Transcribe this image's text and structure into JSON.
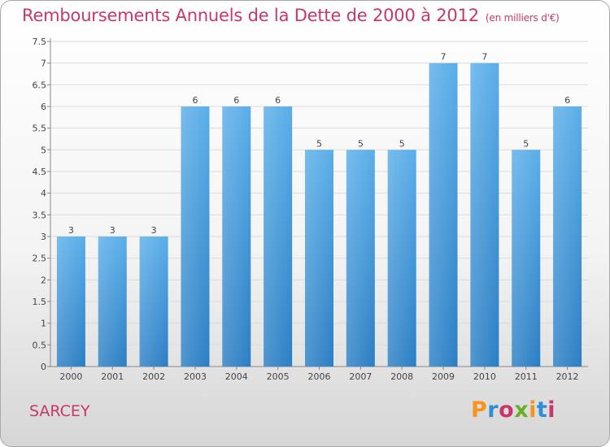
{
  "title": "Remboursements Annuels de la Dette de 2000 à 2012",
  "unit": "(en milliers d'€)",
  "place": "SARCEY",
  "brand": {
    "text": "Proxiti",
    "colors": [
      "#f7941d",
      "#2b8fd6",
      "#c8376b",
      "#6ab023",
      "#f7941d",
      "#2b8fd6",
      "#c8376b"
    ]
  },
  "colors": {
    "bar": "#3a93d8",
    "title": "#c8376b"
  },
  "chart_data": {
    "type": "bar",
    "categories": [
      "2000",
      "2001",
      "2002",
      "2003",
      "2004",
      "2005",
      "2006",
      "2007",
      "2008",
      "2009",
      "2010",
      "2011",
      "2012"
    ],
    "values": [
      3,
      3,
      3,
      6,
      6,
      6,
      5,
      5,
      5,
      7,
      7,
      5,
      6
    ],
    "value_labels": [
      "3",
      "3",
      "3",
      "6",
      "6",
      "6",
      "5",
      "5",
      "5",
      "7",
      "7",
      "5",
      "6"
    ],
    "ylim": [
      0,
      7.5
    ],
    "yticks": [
      "0",
      "0.5",
      "1",
      "1.5",
      "2",
      "2.5",
      "3",
      "3.5",
      "4",
      "4.5",
      "5",
      "5.5",
      "6",
      "6.5",
      "7",
      "7.5"
    ],
    "ytick_values": [
      0,
      0.5,
      1,
      1.5,
      2,
      2.5,
      3,
      3.5,
      4,
      4.5,
      5,
      5.5,
      6,
      6.5,
      7,
      7.5
    ],
    "grid": "horizontal"
  }
}
